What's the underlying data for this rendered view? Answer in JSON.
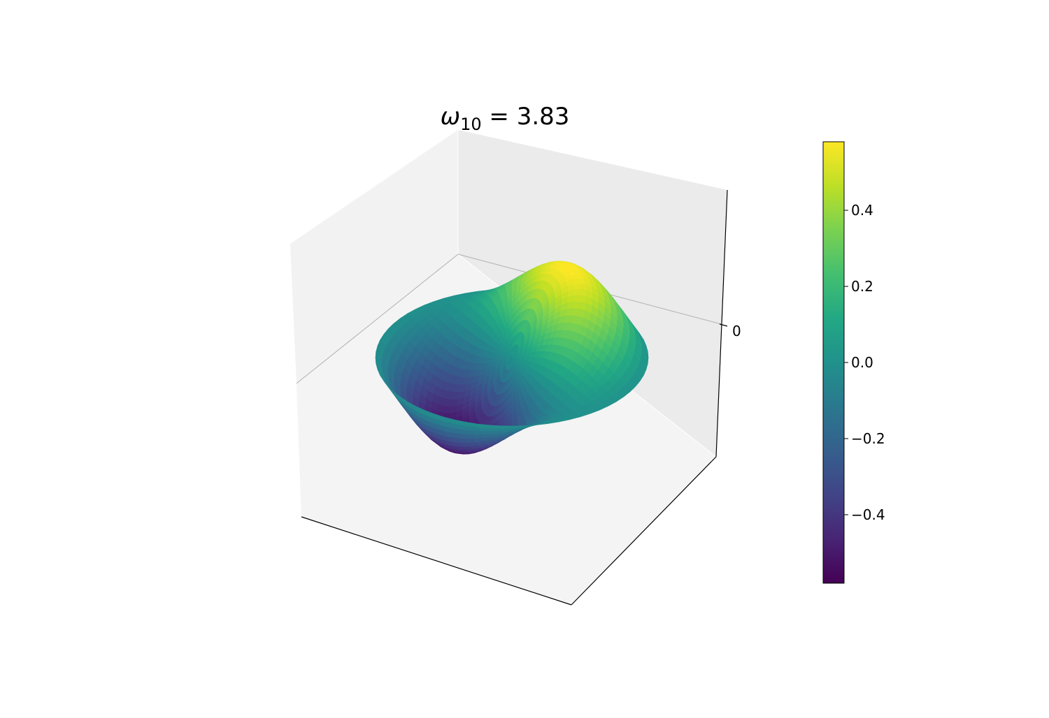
{
  "chart_data": {
    "type": "surface",
    "title": {
      "symbol": "ω",
      "subscript": "10",
      "equals": " = ",
      "value": "3.83"
    },
    "z_axis": {
      "ticks": [
        0
      ],
      "tick_labels": [
        "0"
      ]
    },
    "surface": {
      "function": "J1(3.83 r) cos(theta)",
      "mode": {
        "m": 1,
        "n": 0
      },
      "r_range": [
        0,
        1
      ],
      "z_range": [
        -0.58,
        0.58
      ],
      "colormap": "viridis"
    },
    "colorbar": {
      "range": [
        -0.58,
        0.58
      ],
      "ticks": [
        -0.4,
        -0.2,
        0.0,
        0.2,
        0.4
      ],
      "tick_labels": [
        "−0.4",
        "−0.2",
        "0.0",
        "0.2",
        "0.4"
      ]
    },
    "grid": true,
    "legend": "none"
  }
}
